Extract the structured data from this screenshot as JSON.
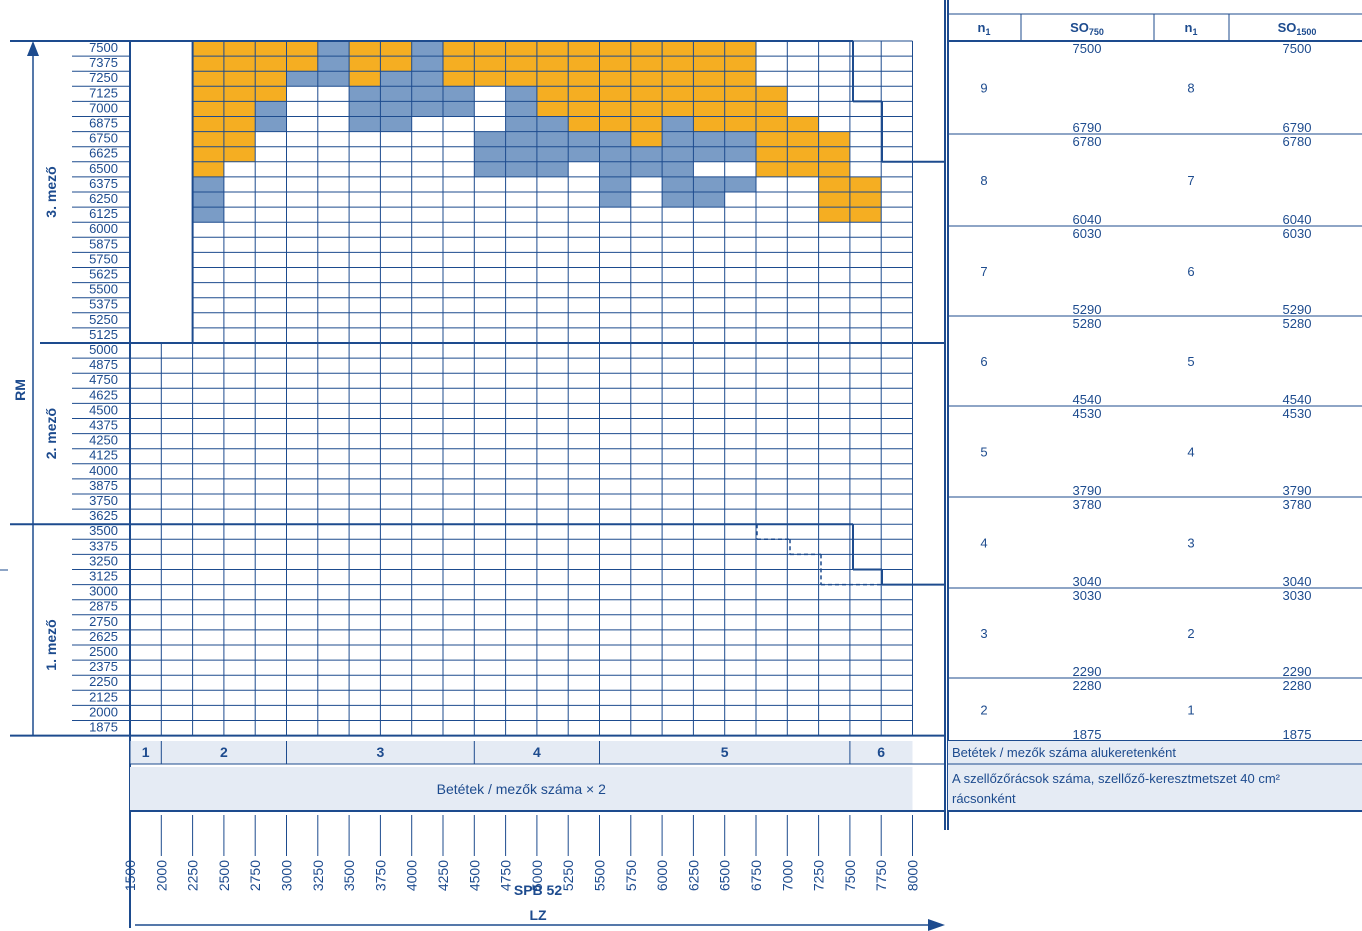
{
  "chart_data": {
    "type": "heatmap",
    "y_axis_label": "RM",
    "x_axis_label": "LZ",
    "x_subtitle": "SPB 52",
    "section_labels": [
      "3. mező",
      "2. mező",
      "1. mező"
    ],
    "rm_ticks": [
      7500,
      7375,
      7250,
      7125,
      7000,
      6875,
      6750,
      6625,
      6500,
      6375,
      6250,
      6125,
      6000,
      5875,
      5750,
      5625,
      5500,
      5375,
      5250,
      5125,
      5000,
      4875,
      4750,
      4625,
      4500,
      4375,
      4250,
      4125,
      4000,
      3875,
      3750,
      3625,
      3500,
      3375,
      3250,
      3125,
      3000,
      2875,
      2750,
      2625,
      2500,
      2375,
      2250,
      2125,
      2000,
      1875
    ],
    "lz_ticks": [
      1500,
      2000,
      2250,
      2500,
      2750,
      3000,
      3250,
      3500,
      3750,
      4000,
      4250,
      4500,
      4750,
      5000,
      5250,
      5500,
      5750,
      6000,
      6250,
      6500,
      6750,
      7000,
      7250,
      7500,
      7750,
      8000
    ],
    "colors": {
      "orange": "#f5ae22",
      "blue": "#7a9cc6",
      "line": "#1d4b8e",
      "band": "#e5ebf4"
    },
    "orange_blue_cells_rows": [
      "XXOOOBOOBOOOOOOOOOO",
      "XXOOOBOOBOOOOOOOOOO",
      "XXOOBBOBBOOOOOOOOOO",
      "XXOO....BBBB.BOOOOOO",
      "XXOOB.BBBBB.BOOOOOO",
      "XXOOB.BBBBB.BBOOBOOO"
    ],
    "cell_matrix": [
      "OOOOOBOOBOOOOOOOOOO...",
      "OOOOOBOOBOOOOOOOOOO...",
      "OOOOBBOBBOOOOOOOOOO...",
      "OOOO..BBBB.BOOOOOOOO..",
      "OOOB..BBBB.BOOOOOOOO..",
      "OOOB..BB...BBOOOBOOOO.",
      "OOO.......BBBBBOBBBOOO",
      "OOO.......BBBBBBBBBOOO",
      "O.........BBB.BBB..OOO",
      "B............B.BBB...OO",
      "B............B.BB....OO",
      "B....................OO"
    ],
    "cells_3rd_field": [
      {
        "row": 7500,
        "cells": "OOOOBOOBOOOOOOOOOO"
      },
      {
        "row": 7375,
        "cells": "OOOOBOOBOOOOOOOOOO"
      },
      {
        "row": 7250,
        "cells": "OOOBBOBBOOOOOOOOOO"
      },
      {
        "row": 7125,
        "cells": "OOO..BBBB.BOOOOOOOO"
      },
      {
        "row": 7000,
        "cells": "OOB..BBBB.BOOOOOOOO"
      },
      {
        "row": 6875,
        "cells": "OOB..BB...BBOOOBOOOO"
      },
      {
        "row": 6750,
        "cells": "OO.......BBBBBOBBBOOO"
      },
      {
        "row": 6625,
        "cells": "OO.......BBBBBBBBBOOO"
      },
      {
        "row": 6500,
        "cells": "O........BBB.BBB..OOO"
      },
      {
        "row": 6375,
        "cells": "B............B.BBB..OO"
      },
      {
        "row": 6250,
        "cells": "B............B.BB...OO"
      },
      {
        "row": 6125,
        "cells": "B...................OO"
      }
    ],
    "groups": [
      {
        "label": "1",
        "from": 1500,
        "to": 2000
      },
      {
        "label": "2",
        "from": 2000,
        "to": 3000
      },
      {
        "label": "3",
        "from": 3000,
        "to": 4500
      },
      {
        "label": "4",
        "from": 4500,
        "to": 5500
      },
      {
        "label": "5",
        "from": 5500,
        "to": 7500
      },
      {
        "label": "6",
        "from": 7500,
        "to": 8000
      }
    ],
    "band_text": "Betétek / mezők száma × 2",
    "right_table": {
      "headers": [
        "n",
        "SO",
        "n",
        "SO"
      ],
      "header_subs": [
        "1",
        "750",
        "1",
        "1500"
      ],
      "rows": [
        {
          "n1": "9",
          "n2": "8",
          "top": "7500",
          "bottom": "6790"
        },
        {
          "n1": "8",
          "n2": "7",
          "top": "6780",
          "bottom": "6040"
        },
        {
          "n1": "7",
          "n2": "6",
          "top": "6030",
          "bottom": "5290"
        },
        {
          "n1": "6",
          "n2": "5",
          "top": "5280",
          "bottom": "4540"
        },
        {
          "n1": "5",
          "n2": "4",
          "top": "4530",
          "bottom": "3790"
        },
        {
          "n1": "4",
          "n2": "3",
          "top": "3780",
          "bottom": "3040"
        },
        {
          "n1": "3",
          "n2": "2",
          "top": "3030",
          "bottom": "2290"
        },
        {
          "n1": "2",
          "n2": "1",
          "top": "2280",
          "bottom": "1875"
        }
      ],
      "note1": "Betétek / mezők száma alukeretenként",
      "note2": "A szellőzőrácsok száma, szellőző-keresztmetszet 40 cm² rácsonként"
    }
  }
}
